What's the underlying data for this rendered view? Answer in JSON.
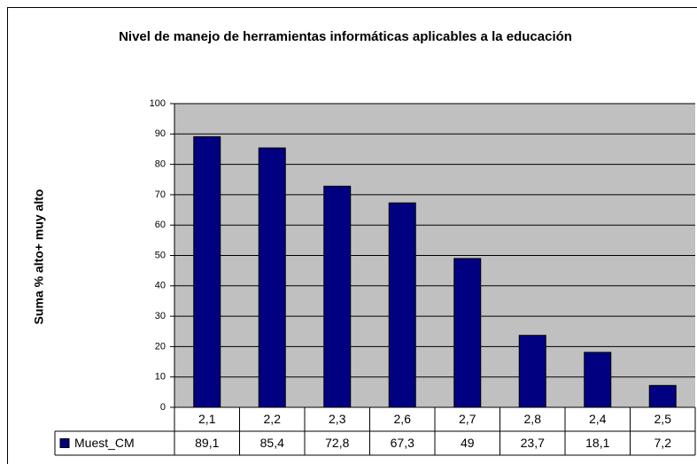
{
  "chart_data": {
    "type": "bar",
    "title": "Nivel de manejo de herramientas informáticas aplicables a la educación",
    "y_label": "Suma % alto+ muy alto",
    "categories": [
      "2,1",
      "2,2",
      "2,3",
      "2,6",
      "2,7",
      "2,8",
      "2,4",
      "2,5"
    ],
    "series": [
      {
        "name": "Muest_CM",
        "color": "#000080",
        "values": [
          89.1,
          85.4,
          72.8,
          67.3,
          49,
          23.7,
          18.1,
          7.2
        ],
        "value_labels": [
          "89,1",
          "85,4",
          "72,8",
          "67,3",
          "49",
          "23,7",
          "18,1",
          "7,2"
        ]
      }
    ],
    "ylim": [
      0,
      100
    ],
    "yticks": [
      0,
      10,
      20,
      30,
      40,
      50,
      60,
      70,
      80,
      90,
      100
    ],
    "grid": true,
    "plot_background": "#c0c0c0"
  }
}
